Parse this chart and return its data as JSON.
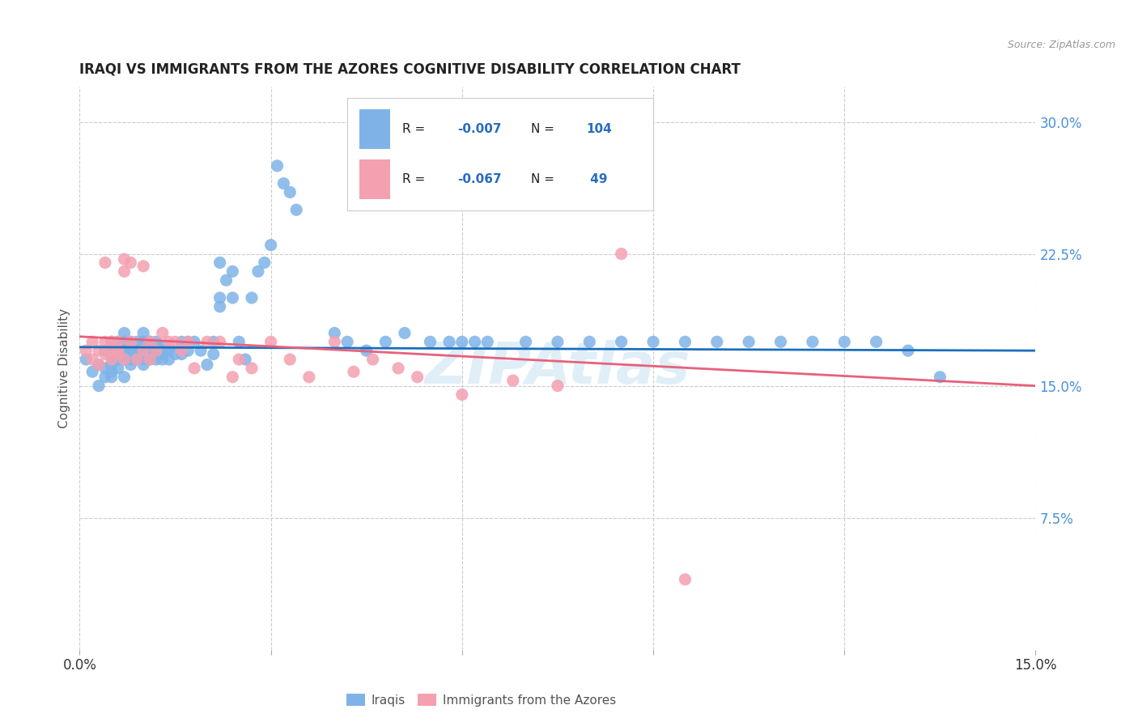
{
  "title": "IRAQI VS IMMIGRANTS FROM THE AZORES COGNITIVE DISABILITY CORRELATION CHART",
  "source": "Source: ZipAtlas.com",
  "ylabel": "Cognitive Disability",
  "watermark": "ZIPAtlas",
  "xlim": [
    0.0,
    0.15
  ],
  "ylim": [
    0.0,
    0.32
  ],
  "ytick_labels_right": [
    "7.5%",
    "15.0%",
    "22.5%",
    "30.0%"
  ],
  "ytick_vals_right": [
    0.075,
    0.15,
    0.225,
    0.3
  ],
  "grid_color": "#cccccc",
  "background_color": "#ffffff",
  "iraqi_color": "#7fb3e8",
  "azores_color": "#f4a0b0",
  "iraqi_line_color": "#1a6fbd",
  "azores_line_color": "#e8607a",
  "legend_iraqi_R": "-0.007",
  "legend_iraqi_N": "104",
  "legend_azores_R": "-0.067",
  "legend_azores_N": " 49",
  "legend_label_iraqi": "Iraqis",
  "legend_label_azores": "Immigrants from the Azores",
  "iraqi_scatter_x": [
    0.001,
    0.002,
    0.003,
    0.003,
    0.004,
    0.004,
    0.004,
    0.005,
    0.005,
    0.005,
    0.005,
    0.005,
    0.006,
    0.006,
    0.006,
    0.006,
    0.007,
    0.007,
    0.007,
    0.007,
    0.007,
    0.007,
    0.008,
    0.008,
    0.008,
    0.008,
    0.008,
    0.009,
    0.009,
    0.009,
    0.009,
    0.01,
    0.01,
    0.01,
    0.01,
    0.01,
    0.01,
    0.011,
    0.011,
    0.011,
    0.011,
    0.011,
    0.012,
    0.012,
    0.012,
    0.012,
    0.013,
    0.013,
    0.013,
    0.013,
    0.014,
    0.014,
    0.014,
    0.015,
    0.016,
    0.016,
    0.016,
    0.017,
    0.017,
    0.018,
    0.019,
    0.02,
    0.021,
    0.021,
    0.022,
    0.022,
    0.022,
    0.023,
    0.024,
    0.024,
    0.025,
    0.026,
    0.027,
    0.028,
    0.029,
    0.03,
    0.031,
    0.032,
    0.033,
    0.034,
    0.04,
    0.042,
    0.045,
    0.048,
    0.051,
    0.055,
    0.058,
    0.06,
    0.062,
    0.064,
    0.07,
    0.075,
    0.08,
    0.085,
    0.09,
    0.095,
    0.1,
    0.105,
    0.11,
    0.115,
    0.12,
    0.125,
    0.13,
    0.135
  ],
  "iraqi_scatter_y": [
    0.165,
    0.158,
    0.15,
    0.162,
    0.17,
    0.155,
    0.16,
    0.158,
    0.168,
    0.162,
    0.175,
    0.155,
    0.165,
    0.17,
    0.175,
    0.16,
    0.17,
    0.165,
    0.175,
    0.18,
    0.168,
    0.155,
    0.172,
    0.165,
    0.17,
    0.175,
    0.162,
    0.175,
    0.168,
    0.165,
    0.17,
    0.165,
    0.175,
    0.17,
    0.18,
    0.162,
    0.168,
    0.175,
    0.168,
    0.172,
    0.165,
    0.175,
    0.175,
    0.17,
    0.165,
    0.168,
    0.17,
    0.168,
    0.165,
    0.172,
    0.17,
    0.165,
    0.172,
    0.168,
    0.172,
    0.175,
    0.168,
    0.175,
    0.17,
    0.175,
    0.17,
    0.162,
    0.175,
    0.168,
    0.2,
    0.195,
    0.22,
    0.21,
    0.2,
    0.215,
    0.175,
    0.165,
    0.2,
    0.215,
    0.22,
    0.23,
    0.275,
    0.265,
    0.26,
    0.25,
    0.18,
    0.175,
    0.17,
    0.175,
    0.18,
    0.175,
    0.175,
    0.175,
    0.175,
    0.175,
    0.175,
    0.175,
    0.175,
    0.175,
    0.175,
    0.175,
    0.175,
    0.175,
    0.175,
    0.175,
    0.175,
    0.175,
    0.17,
    0.155
  ],
  "azores_scatter_x": [
    0.001,
    0.002,
    0.002,
    0.003,
    0.003,
    0.004,
    0.004,
    0.004,
    0.005,
    0.005,
    0.005,
    0.006,
    0.006,
    0.006,
    0.007,
    0.007,
    0.007,
    0.008,
    0.008,
    0.009,
    0.01,
    0.01,
    0.011,
    0.011,
    0.012,
    0.013,
    0.014,
    0.015,
    0.016,
    0.017,
    0.018,
    0.02,
    0.022,
    0.024,
    0.025,
    0.027,
    0.03,
    0.033,
    0.036,
    0.04,
    0.043,
    0.046,
    0.05,
    0.053,
    0.06,
    0.068,
    0.075,
    0.085,
    0.095
  ],
  "azores_scatter_y": [
    0.17,
    0.165,
    0.175,
    0.162,
    0.17,
    0.168,
    0.175,
    0.22,
    0.165,
    0.17,
    0.175,
    0.17,
    0.168,
    0.175,
    0.222,
    0.215,
    0.165,
    0.175,
    0.22,
    0.165,
    0.218,
    0.17,
    0.175,
    0.165,
    0.17,
    0.18,
    0.175,
    0.175,
    0.17,
    0.175,
    0.16,
    0.175,
    0.175,
    0.155,
    0.165,
    0.16,
    0.175,
    0.165,
    0.155,
    0.175,
    0.158,
    0.165,
    0.16,
    0.155,
    0.145,
    0.153,
    0.15,
    0.225,
    0.04
  ],
  "iraqi_trend_x": [
    0.0,
    0.15
  ],
  "iraqi_trend_y": [
    0.172,
    0.17
  ],
  "azores_trend_x": [
    0.0,
    0.15
  ],
  "azores_trend_y": [
    0.178,
    0.15
  ]
}
